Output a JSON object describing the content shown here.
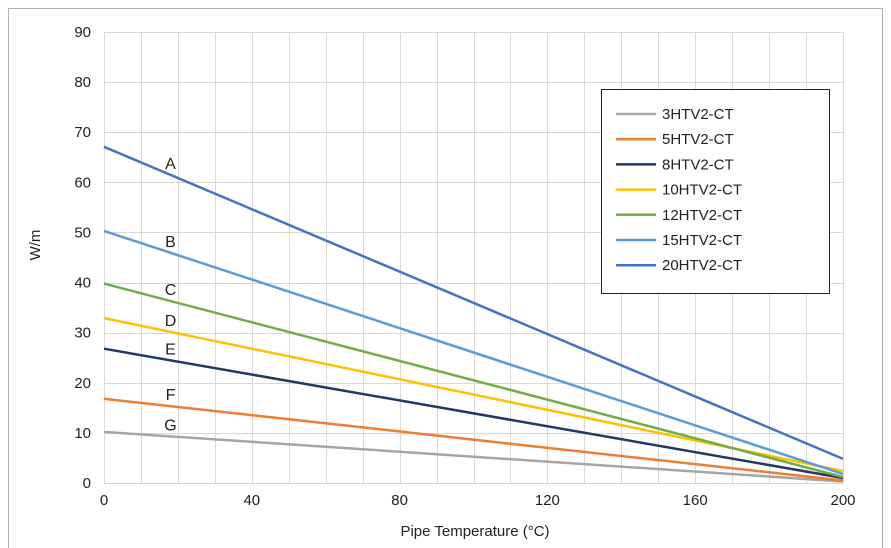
{
  "chart_data": {
    "type": "line",
    "xlabel": "Pipe Temperature (°C)",
    "ylabel": "W/m",
    "xlim": [
      0,
      200
    ],
    "ylim": [
      0,
      90
    ],
    "x_ticks": [
      "0",
      "40",
      "80",
      "120",
      "160",
      "200"
    ],
    "y_ticks": [
      "0",
      "10",
      "20",
      "30",
      "40",
      "50",
      "60",
      "70",
      "80",
      "90"
    ],
    "grid": true,
    "legend_position": "top-right",
    "series": [
      {
        "name": "3HTV2-CT",
        "tag": "G",
        "color": "#a5a5a5",
        "points": [
          [
            0,
            10.2
          ],
          [
            200,
            0.3
          ]
        ]
      },
      {
        "name": "5HTV2-CT",
        "tag": "F",
        "color": "#ed7d31",
        "points": [
          [
            0,
            16.8
          ],
          [
            200,
            0.5
          ]
        ]
      },
      {
        "name": "8HTV2-CT",
        "tag": "E",
        "color": "#203864",
        "points": [
          [
            0,
            26.8
          ],
          [
            200,
            1.0
          ]
        ]
      },
      {
        "name": "10HTV2-CT",
        "tag": "D",
        "color": "#ffc000",
        "points": [
          [
            0,
            32.9
          ],
          [
            200,
            2.4
          ]
        ]
      },
      {
        "name": "12HTV2-CT",
        "tag": "C",
        "color": "#70ad47",
        "points": [
          [
            0,
            39.8
          ],
          [
            200,
            1.2
          ]
        ]
      },
      {
        "name": "15HTV2-CT",
        "tag": "B",
        "color": "#5b9bd5",
        "points": [
          [
            0,
            50.3
          ],
          [
            200,
            1.8
          ]
        ]
      },
      {
        "name": "20HTV2-CT",
        "tag": "A",
        "color": "#4472c4",
        "points": [
          [
            0,
            67.1
          ],
          [
            200,
            4.8
          ]
        ]
      }
    ]
  }
}
